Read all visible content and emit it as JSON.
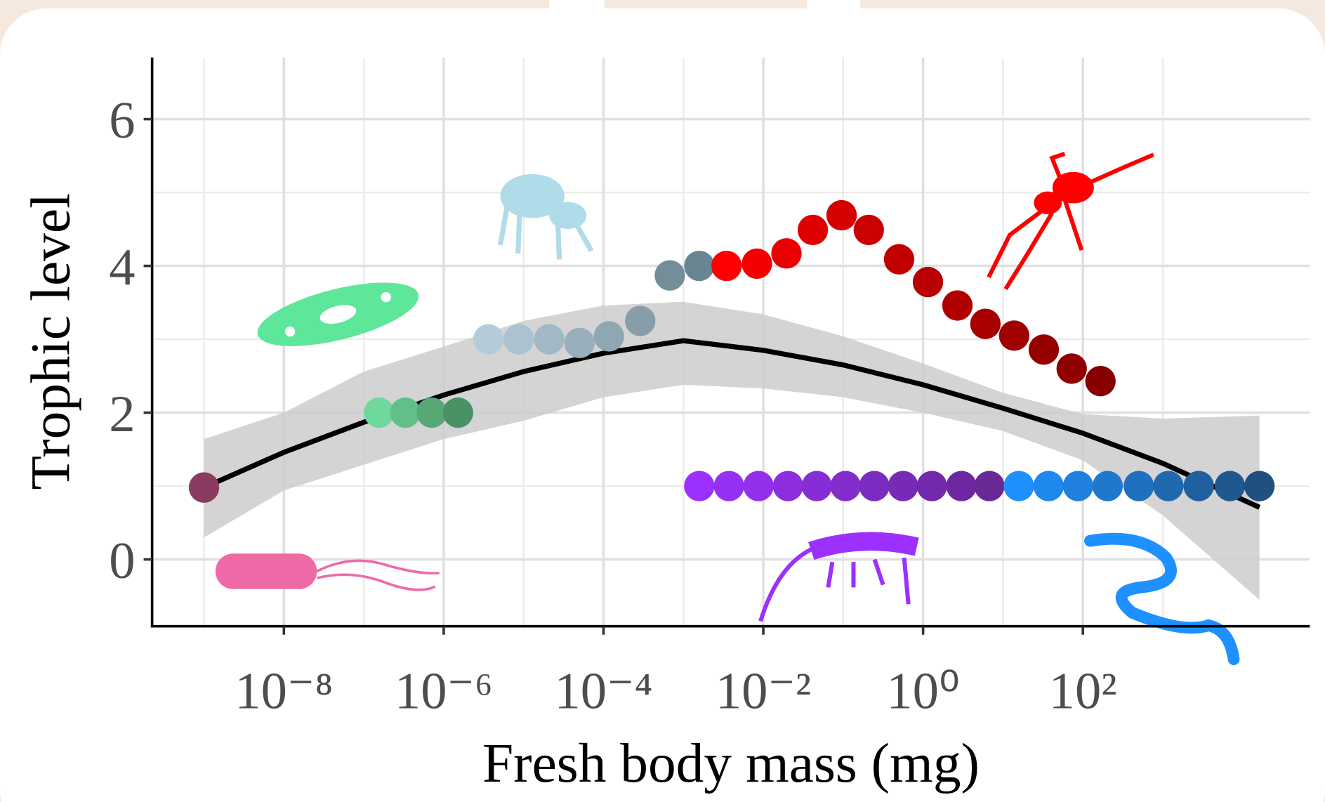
{
  "chart_data": {
    "type": "scatter",
    "xlabel": "Fresh body mass (mg)",
    "ylabel": "Trophic level",
    "xlog": true,
    "xlim": [
      2.24e-10,
      69183
    ],
    "ylim": [
      -0.91,
      6.84
    ],
    "xticks": [
      {
        "value": 1e-08,
        "label": "10⁻⁸"
      },
      {
        "value": 1e-06,
        "label": "10⁻⁶"
      },
      {
        "value": 0.0001,
        "label": "10⁻⁴"
      },
      {
        "value": 0.01,
        "label": "10⁻²"
      },
      {
        "value": 1,
        "label": "10⁰"
      },
      {
        "value": 100,
        "label": "10²"
      }
    ],
    "xminor": [
      1e-09,
      1e-07,
      1e-05,
      0.001,
      0.1,
      10,
      1000,
      100000
    ],
    "yticks": [
      0,
      2,
      4,
      6
    ],
    "yminor": [
      1,
      3,
      5
    ],
    "grid": true,
    "series": [
      {
        "colors": [
          "#8b3a62"
        ],
        "x": [
          1e-09
        ],
        "y": [
          0.98
        ]
      },
      {
        "colors": [
          "#6fd89c",
          "#63bf8a",
          "#57a877",
          "#4a9166"
        ],
        "x": [
          1.55e-07,
          3.31e-07,
          7.08e-07,
          1.51e-06
        ],
        "y": [
          2.0,
          2.0,
          2.0,
          2.0
        ]
      },
      {
        "colors": [
          "#b3ccd8",
          "#aac3cf",
          "#a1b9c5",
          "#98b0bc",
          "#8fa7b3",
          "#879eaa"
        ],
        "x": [
          3.63e-06,
          8.71e-06,
          2.09e-05,
          5.01e-05,
          0.000117,
          0.000288
        ],
        "y": [
          3.0,
          3.0,
          3.0,
          2.95,
          3.04,
          3.25
        ]
      },
      {
        "colors": [
          "#738d99",
          "#6a8592"
        ],
        "x": [
          0.000676,
          0.00158
        ],
        "y": [
          3.87,
          4.0
        ]
      },
      {
        "colors": [
          "#ff0000",
          "#f40000",
          "#ea0000",
          "#e00000",
          "#d60000",
          "#cc0000",
          "#c30000",
          "#ba0000",
          "#b10000",
          "#a80000",
          "#a00000",
          "#980000",
          "#900000",
          "#880000"
        ],
        "x": [
          0.00347,
          0.00832,
          0.0195,
          0.0417,
          0.0955,
          0.209,
          0.501,
          1.15,
          2.69,
          6.03,
          13.8,
          32.4,
          72.4,
          166
        ],
        "y": [
          4.0,
          4.03,
          4.17,
          4.49,
          4.69,
          4.49,
          4.09,
          3.78,
          3.46,
          3.21,
          3.05,
          2.86,
          2.6,
          2.43
        ]
      },
      {
        "colors": [
          "#9b30ff",
          "#9630f5",
          "#912fea",
          "#8c2ee0",
          "#872dd5",
          "#822ccb",
          "#7c2bc0",
          "#772ab6",
          "#7229ab",
          "#6d28a1",
          "#682896"
        ],
        "x": [
          0.00158,
          0.00372,
          0.00871,
          0.0204,
          0.0468,
          0.107,
          0.245,
          0.562,
          1.29,
          3.02,
          6.76
        ],
        "y": [
          1.0,
          1.0,
          1.0,
          1.0,
          1.0,
          1.0,
          1.0,
          1.0,
          1.0,
          1.0,
          1.0
        ]
      },
      {
        "colors": [
          "#1e90ff",
          "#1e88ee",
          "#1f80de",
          "#1f78ce",
          "#1f70be",
          "#1f68ae",
          "#1f609e",
          "#1f588e",
          "#1f507e"
        ],
        "x": [
          15.8,
          37.2,
          87.1,
          204,
          501,
          1175,
          2818,
          6918,
          16218
        ],
        "y": [
          1.0,
          1.0,
          1.0,
          1.0,
          1.0,
          1.0,
          1.0,
          1.0,
          1.0
        ]
      }
    ],
    "fit": {
      "color": "#000000",
      "band_color": "#cccccc",
      "x": [
        1e-09,
        1e-08,
        1e-07,
        1e-06,
        1e-05,
        0.0001,
        0.001,
        0.01,
        0.1,
        1,
        10,
        100,
        1000,
        16218
      ],
      "y": [
        0.98,
        1.46,
        1.87,
        2.24,
        2.56,
        2.81,
        2.98,
        2.85,
        2.65,
        2.38,
        2.06,
        1.72,
        1.31,
        0.71
      ],
      "upper": [
        1.64,
        2.0,
        2.56,
        2.9,
        3.25,
        3.46,
        3.51,
        3.34,
        3.04,
        2.67,
        2.27,
        1.98,
        1.92,
        1.96
      ],
      "lower": [
        0.3,
        0.94,
        1.29,
        1.64,
        1.89,
        2.21,
        2.38,
        2.33,
        2.21,
        2.0,
        1.75,
        1.35,
        0.6,
        -0.55
      ]
    }
  }
}
